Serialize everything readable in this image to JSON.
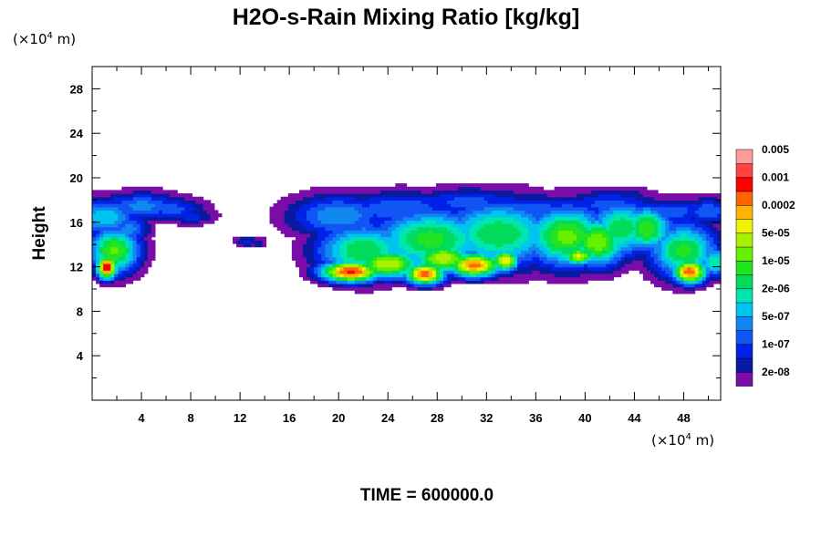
{
  "chart_data": {
    "type": "heatmap",
    "title": "H2O-s-Rain Mixing Ratio [kg/kg]",
    "ylabel": "Height",
    "xlabel": "",
    "x_unit": {
      "prefix": "(×10",
      "exp": "4",
      "suffix": " m)"
    },
    "y_unit": {
      "prefix": "(×10",
      "exp": "4",
      "suffix": " m)"
    },
    "xlim": [
      0,
      51
    ],
    "ylim": [
      0,
      30
    ],
    "x_ticks": [
      4,
      8,
      12,
      16,
      20,
      24,
      28,
      32,
      36,
      40,
      44,
      48
    ],
    "y_ticks": [
      4,
      8,
      12,
      16,
      20,
      24,
      28
    ],
    "x_tick_labels": [
      "4",
      "8",
      "12",
      "16",
      "20",
      "24",
      "28",
      "32",
      "36",
      "40",
      "44",
      "48"
    ],
    "y_tick_labels": [
      "4",
      "8",
      "12",
      "16",
      "20",
      "24",
      "28"
    ],
    "colorbar": {
      "colors": [
        "#7a0da8",
        "#0a1aa0",
        "#0022e6",
        "#1155f5",
        "#1188f0",
        "#00c4f0",
        "#00e6b0",
        "#00dc5a",
        "#22e422",
        "#66f000",
        "#aaf000",
        "#f0f000",
        "#ffb400",
        "#ff6600",
        "#ff0000",
        "#ff4444",
        "#ff9a9a"
      ],
      "labels": [
        "2e-08",
        "1e-07",
        "5e-07",
        "2e-06",
        "1e-05",
        "5e-05",
        "0.0002",
        "0.001",
        "0.005"
      ]
    },
    "clusters": [
      {
        "x": 1.2,
        "y": 12.0,
        "sx": 0.6,
        "sy": 0.8,
        "v": 16.0
      },
      {
        "x": 1.8,
        "y": 13.5,
        "sx": 1.5,
        "sy": 1.5,
        "v": 10.5
      },
      {
        "x": 1.0,
        "y": 16.5,
        "sx": 2.0,
        "sy": 1.2,
        "v": 7.0
      },
      {
        "x": 4.0,
        "y": 17.5,
        "sx": 2.5,
        "sy": 0.9,
        "v": 5.5
      },
      {
        "x": 6.5,
        "y": 17.2,
        "sx": 2.0,
        "sy": 0.8,
        "v": 4.5
      },
      {
        "x": 8.0,
        "y": 16.6,
        "sx": 1.5,
        "sy": 0.6,
        "v": 3.5
      },
      {
        "x": 3.0,
        "y": 15.5,
        "sx": 1.2,
        "sy": 1.0,
        "v": 5.5
      },
      {
        "x": 12.6,
        "y": 14.3,
        "sx": 0.8,
        "sy": 0.35,
        "v": 3.4
      },
      {
        "x": 13.5,
        "y": 14.2,
        "sx": 0.5,
        "sy": 0.3,
        "v": 3.0
      },
      {
        "x": 21.0,
        "y": 11.6,
        "sx": 1.8,
        "sy": 0.7,
        "v": 15.5
      },
      {
        "x": 27.0,
        "y": 11.4,
        "sx": 1.2,
        "sy": 0.7,
        "v": 15.0
      },
      {
        "x": 31.0,
        "y": 12.2,
        "sx": 1.6,
        "sy": 0.8,
        "v": 14.5
      },
      {
        "x": 33.5,
        "y": 12.6,
        "sx": 0.8,
        "sy": 0.7,
        "v": 13.0
      },
      {
        "x": 24.0,
        "y": 12.3,
        "sx": 2.0,
        "sy": 1.0,
        "v": 12.0
      },
      {
        "x": 28.5,
        "y": 12.8,
        "sx": 1.8,
        "sy": 1.0,
        "v": 12.0
      },
      {
        "x": 22.0,
        "y": 13.5,
        "sx": 2.8,
        "sy": 1.8,
        "v": 9.0
      },
      {
        "x": 27.5,
        "y": 14.5,
        "sx": 3.5,
        "sy": 2.0,
        "v": 9.5
      },
      {
        "x": 33.0,
        "y": 15.0,
        "sx": 3.5,
        "sy": 2.2,
        "v": 9.0
      },
      {
        "x": 38.5,
        "y": 14.8,
        "sx": 2.5,
        "sy": 2.0,
        "v": 10.5
      },
      {
        "x": 41.0,
        "y": 14.3,
        "sx": 1.8,
        "sy": 1.6,
        "v": 11.0
      },
      {
        "x": 39.5,
        "y": 13.0,
        "sx": 1.0,
        "sy": 0.6,
        "v": 12.2
      },
      {
        "x": 43.0,
        "y": 15.5,
        "sx": 2.0,
        "sy": 1.8,
        "v": 9.0
      },
      {
        "x": 45.0,
        "y": 15.5,
        "sx": 1.5,
        "sy": 1.5,
        "v": 10.0
      },
      {
        "x": 48.5,
        "y": 11.6,
        "sx": 1.0,
        "sy": 0.8,
        "v": 15.0
      },
      {
        "x": 48.0,
        "y": 13.5,
        "sx": 2.0,
        "sy": 1.8,
        "v": 9.5
      },
      {
        "x": 50.5,
        "y": 12.5,
        "sx": 1.0,
        "sy": 1.0,
        "v": 8.0
      },
      {
        "x": 20.0,
        "y": 16.6,
        "sx": 3.0,
        "sy": 1.4,
        "v": 6.0
      },
      {
        "x": 25.0,
        "y": 17.2,
        "sx": 4.0,
        "sy": 1.2,
        "v": 5.0
      },
      {
        "x": 30.5,
        "y": 17.8,
        "sx": 3.5,
        "sy": 1.0,
        "v": 4.5
      },
      {
        "x": 36.0,
        "y": 17.2,
        "sx": 3.5,
        "sy": 1.0,
        "v": 4.5
      },
      {
        "x": 42.0,
        "y": 17.6,
        "sx": 3.0,
        "sy": 1.0,
        "v": 4.5
      },
      {
        "x": 47.0,
        "y": 17.0,
        "sx": 3.0,
        "sy": 0.9,
        "v": 4.5
      },
      {
        "x": 50.0,
        "y": 17.0,
        "sx": 1.5,
        "sy": 0.9,
        "v": 5.0
      },
      {
        "x": 30.0,
        "y": 18.5,
        "sx": 2.0,
        "sy": 0.6,
        "v": 3.0
      },
      {
        "x": 43.5,
        "y": 18.5,
        "sx": 1.5,
        "sy": 0.5,
        "v": 2.6
      },
      {
        "x": 17.0,
        "y": 16.5,
        "sx": 1.2,
        "sy": 0.8,
        "v": 3.0
      },
      {
        "x": 16.0,
        "y": 17.5,
        "sx": 0.8,
        "sy": 0.4,
        "v": 2.0
      }
    ]
  },
  "time_label": "TIME = 600000.0"
}
